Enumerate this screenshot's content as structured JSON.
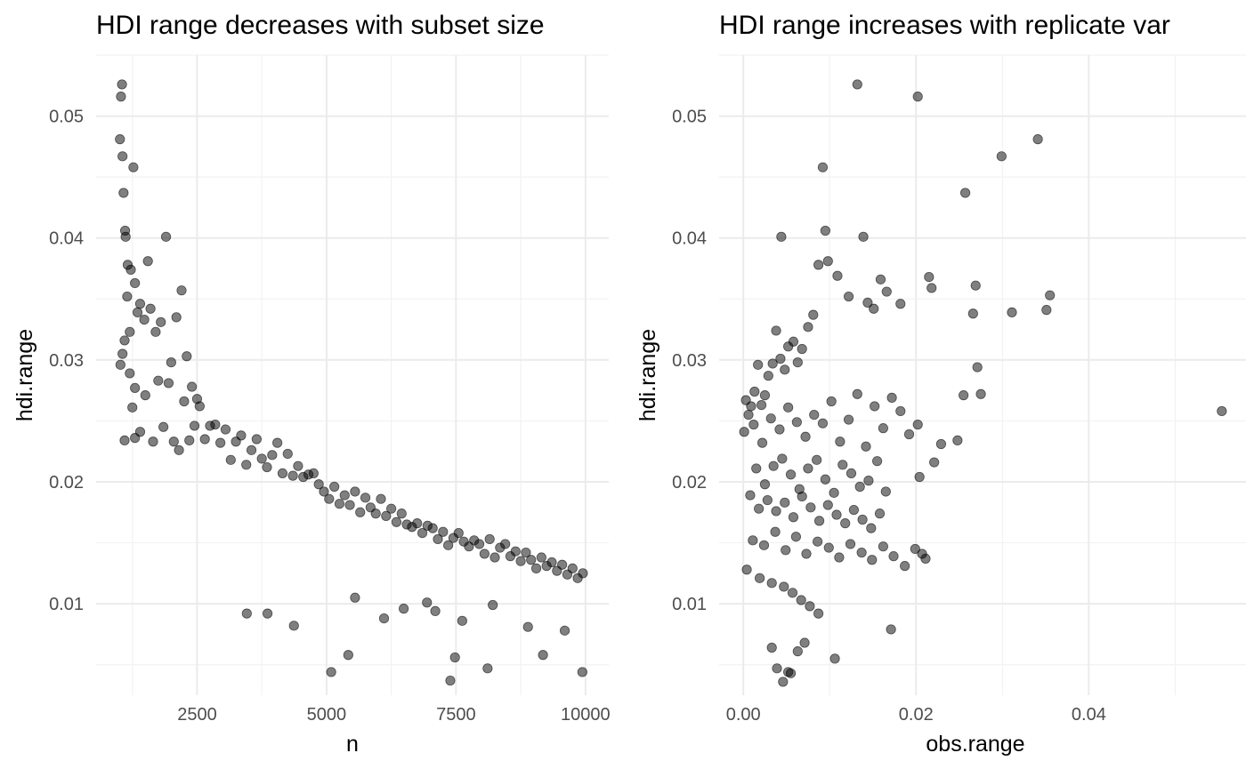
{
  "chart_data": [
    {
      "type": "scatter",
      "title": "HDI range decreases with subset size",
      "xlabel": "n",
      "ylabel": "hdi.range",
      "xlim": [
        550,
        10450
      ],
      "ylim": [
        0.0025,
        0.055
      ],
      "xticks": [
        2500,
        5000,
        7500,
        10000
      ],
      "xtick_labels": [
        "2500",
        "5000",
        "7500",
        "10000"
      ],
      "yticks": [
        0.01,
        0.02,
        0.03,
        0.04,
        0.05
      ],
      "ytick_labels": [
        "0.01",
        "0.02",
        "0.03",
        "0.04",
        "0.05"
      ],
      "grid": true,
      "legend": "none",
      "point_color": "#000000",
      "point_alpha": 0.5,
      "points": {
        "x": [
          1010,
          1030,
          1050,
          1060,
          1080,
          1110,
          1120,
          1160,
          1220,
          1270,
          1300,
          1350,
          1020,
          1060,
          1100,
          1150,
          1200,
          1250,
          1300,
          1400,
          1480,
          1550,
          1600,
          1700,
          1800,
          1900,
          2000,
          2100,
          2200,
          2300,
          2400,
          2500,
          1100,
          1200,
          1300,
          1400,
          1500,
          1650,
          1750,
          1850,
          1950,
          2050,
          2150,
          2250,
          2350,
          2450,
          2550,
          2650,
          2750,
          2850,
          2950,
          3050,
          3150,
          3250,
          3350,
          3450,
          3550,
          3650,
          3750,
          3850,
          3950,
          4050,
          4150,
          4250,
          4350,
          4450,
          4550,
          4650,
          4750,
          4850,
          4950,
          5050,
          5150,
          5250,
          5350,
          5450,
          5550,
          5650,
          5750,
          5850,
          5950,
          6050,
          6150,
          6250,
          6350,
          6450,
          6550,
          6650,
          6750,
          6850,
          6950,
          7050,
          7150,
          7250,
          7350,
          7450,
          7550,
          7650,
          7750,
          7850,
          7950,
          8050,
          8150,
          8250,
          8350,
          8450,
          8550,
          8650,
          8750,
          8850,
          8950,
          9050,
          9150,
          9250,
          9350,
          9450,
          9550,
          9650,
          9750,
          9850,
          9950,
          5090,
          5420,
          7390,
          7480,
          8110,
          9940,
          3460,
          3860,
          4370,
          5550,
          6110,
          6490,
          6940,
          7100,
          7620,
          8210,
          8890,
          9180,
          9600
        ],
        "y": [
          0.0481,
          0.0516,
          0.0526,
          0.0467,
          0.0437,
          0.0406,
          0.0401,
          0.0378,
          0.0374,
          0.0458,
          0.0363,
          0.0339,
          0.0296,
          0.0305,
          0.0316,
          0.0352,
          0.0323,
          0.0261,
          0.0277,
          0.0346,
          0.0333,
          0.0381,
          0.0342,
          0.0323,
          0.0331,
          0.0401,
          0.0298,
          0.0335,
          0.0357,
          0.0303,
          0.0278,
          0.0268,
          0.0234,
          0.0289,
          0.0236,
          0.0241,
          0.0271,
          0.0233,
          0.0283,
          0.0245,
          0.0281,
          0.0233,
          0.0226,
          0.0266,
          0.0234,
          0.0246,
          0.0262,
          0.0235,
          0.0246,
          0.0247,
          0.0232,
          0.0243,
          0.0218,
          0.0233,
          0.0238,
          0.0214,
          0.0226,
          0.0235,
          0.0219,
          0.0212,
          0.0222,
          0.0232,
          0.0207,
          0.0223,
          0.0205,
          0.0213,
          0.0204,
          0.0206,
          0.0207,
          0.0198,
          0.0192,
          0.0186,
          0.0196,
          0.0182,
          0.0189,
          0.0181,
          0.0192,
          0.0175,
          0.0187,
          0.0179,
          0.0174,
          0.0186,
          0.0172,
          0.0178,
          0.0167,
          0.0174,
          0.0165,
          0.0163,
          0.0166,
          0.0158,
          0.0164,
          0.0162,
          0.0153,
          0.0159,
          0.0148,
          0.0154,
          0.0158,
          0.0151,
          0.0147,
          0.0152,
          0.0149,
          0.0141,
          0.0153,
          0.0138,
          0.0146,
          0.0149,
          0.0139,
          0.0143,
          0.0135,
          0.0142,
          0.0136,
          0.0129,
          0.0138,
          0.0131,
          0.0134,
          0.0127,
          0.0132,
          0.0124,
          0.0129,
          0.0121,
          0.0125,
          0.0044,
          0.0058,
          0.0037,
          0.0056,
          0.0047,
          0.0044,
          0.0092,
          0.0092,
          0.0082,
          0.0105,
          0.0088,
          0.0096,
          0.0101,
          0.0094,
          0.0086,
          0.0099,
          0.0081,
          0.0058,
          0.0078
        ]
      }
    },
    {
      "type": "scatter",
      "title": "HDI range increases with replicate var",
      "xlabel": "obs.range",
      "ylabel": "hdi.range",
      "xlim": [
        -0.0028,
        0.0582
      ],
      "ylim": [
        0.0025,
        0.055
      ],
      "xticks": [
        0.0,
        0.02,
        0.04
      ],
      "xtick_labels": [
        "0.00",
        "0.02",
        "0.04"
      ],
      "yticks": [
        0.01,
        0.02,
        0.03,
        0.04,
        0.05
      ],
      "ytick_labels": [
        "0.01",
        "0.02",
        "0.03",
        "0.04",
        "0.05"
      ],
      "grid": true,
      "legend": "none",
      "point_color": "#000000",
      "point_alpha": 0.5,
      "points": {
        "x": [
          0.0132,
          0.0202,
          0.0341,
          0.0299,
          0.0257,
          0.0092,
          0.0095,
          0.0044,
          0.0139,
          0.0215,
          0.0269,
          0.0355,
          0.0351,
          0.0311,
          0.0266,
          0.0271,
          0.0275,
          0.0255,
          0.0248,
          0.0229,
          0.0221,
          0.0554,
          0.0207,
          0.0171,
          0.0106,
          0.0204,
          0.0218,
          0.0182,
          0.0166,
          0.0159,
          0.0151,
          0.0144,
          0.0122,
          0.0109,
          0.0098,
          0.0087,
          0.0081,
          0.0075,
          0.0068,
          0.0063,
          0.0058,
          0.0052,
          0.0048,
          0.0043,
          0.0038,
          0.0034,
          0.0029,
          0.0025,
          0.0021,
          0.0017,
          0.0013,
          0.0009,
          0.0006,
          0.0003,
          0.0001,
          0.0012,
          0.0022,
          0.0032,
          0.0042,
          0.0052,
          0.0062,
          0.0072,
          0.0082,
          0.0092,
          0.0102,
          0.0112,
          0.0122,
          0.0132,
          0.0142,
          0.0152,
          0.0162,
          0.0172,
          0.0182,
          0.0192,
          0.0202,
          0.0015,
          0.0025,
          0.0035,
          0.0045,
          0.0055,
          0.0065,
          0.0075,
          0.0085,
          0.0095,
          0.0105,
          0.0115,
          0.0125,
          0.0135,
          0.0145,
          0.0155,
          0.0165,
          0.0008,
          0.0018,
          0.0028,
          0.0038,
          0.0048,
          0.0058,
          0.0068,
          0.0078,
          0.0088,
          0.0098,
          0.0108,
          0.0118,
          0.0128,
          0.0138,
          0.0148,
          0.0158,
          0.0011,
          0.0024,
          0.0037,
          0.0049,
          0.0061,
          0.0073,
          0.0086,
          0.0099,
          0.0111,
          0.0124,
          0.0137,
          0.0149,
          0.0162,
          0.0174,
          0.0187,
          0.0199,
          0.0211,
          0.0004,
          0.0019,
          0.0033,
          0.0047,
          0.0057,
          0.0067,
          0.0077,
          0.0087,
          0.0033,
          0.0039,
          0.0046,
          0.0052,
          0.0055,
          0.0063,
          0.0071
        ],
        "y": [
          0.0526,
          0.0516,
          0.0481,
          0.0467,
          0.0437,
          0.0458,
          0.0406,
          0.0401,
          0.0401,
          0.0368,
          0.0361,
          0.0353,
          0.0341,
          0.0339,
          0.0338,
          0.0294,
          0.0272,
          0.0271,
          0.0234,
          0.0231,
          0.0216,
          0.0258,
          0.0141,
          0.0079,
          0.0055,
          0.0204,
          0.0359,
          0.0346,
          0.0356,
          0.0366,
          0.0342,
          0.0347,
          0.0352,
          0.0369,
          0.0381,
          0.0378,
          0.0337,
          0.0327,
          0.0309,
          0.0298,
          0.0315,
          0.0311,
          0.0292,
          0.0301,
          0.0324,
          0.0297,
          0.0287,
          0.0271,
          0.0263,
          0.0296,
          0.0274,
          0.0262,
          0.0255,
          0.0267,
          0.0241,
          0.0247,
          0.0232,
          0.0252,
          0.0243,
          0.0261,
          0.0249,
          0.0237,
          0.0255,
          0.0248,
          0.0266,
          0.0233,
          0.0251,
          0.0272,
          0.0229,
          0.0262,
          0.0244,
          0.0269,
          0.0258,
          0.0239,
          0.0247,
          0.0211,
          0.0198,
          0.0213,
          0.0219,
          0.0206,
          0.0194,
          0.0211,
          0.0218,
          0.0202,
          0.0191,
          0.0214,
          0.0207,
          0.0196,
          0.0201,
          0.0217,
          0.0192,
          0.0189,
          0.0178,
          0.0185,
          0.0176,
          0.0183,
          0.0171,
          0.0188,
          0.0179,
          0.0168,
          0.0181,
          0.0173,
          0.0166,
          0.0177,
          0.0169,
          0.0162,
          0.0174,
          0.0152,
          0.0148,
          0.0159,
          0.0144,
          0.0155,
          0.0141,
          0.0151,
          0.0146,
          0.0138,
          0.0149,
          0.0142,
          0.0136,
          0.0147,
          0.0139,
          0.0131,
          0.0145,
          0.0137,
          0.0128,
          0.0121,
          0.0117,
          0.0114,
          0.0109,
          0.0103,
          0.0098,
          0.0092,
          0.0064,
          0.0047,
          0.0036,
          0.0044,
          0.0043,
          0.0061,
          0.0068
        ]
      }
    }
  ]
}
